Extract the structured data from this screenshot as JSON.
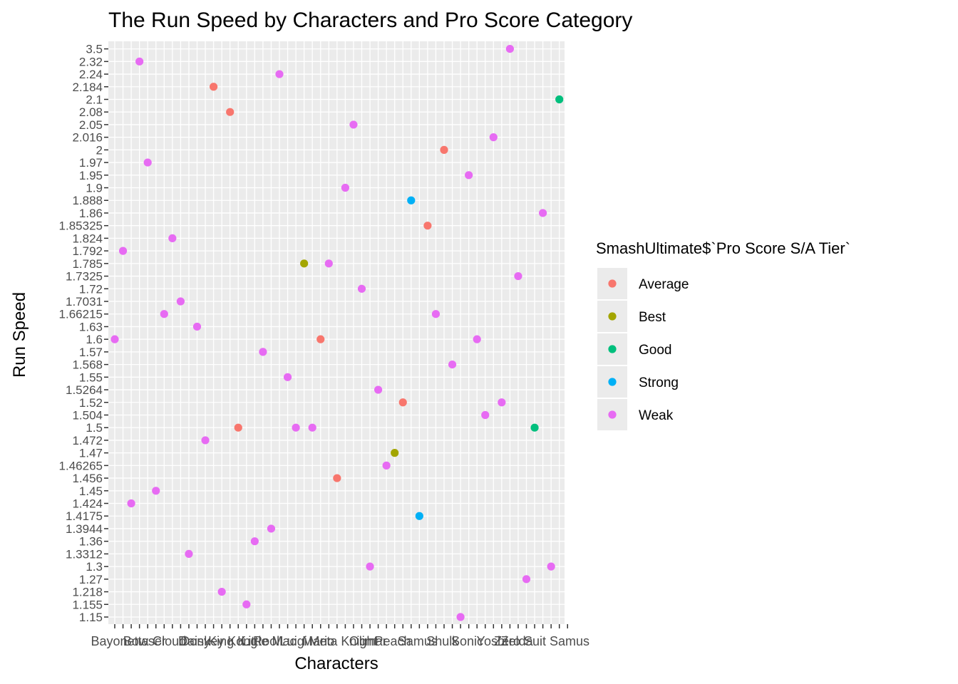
{
  "chart_data": {
    "type": "scatter",
    "title": "The Run Speed by Characters and Pro Score Category",
    "xlabel": "Characters",
    "ylabel": "Run Speed",
    "y_axis_kind": "discrete",
    "y_levels": [
      "1.15",
      "1.155",
      "1.218",
      "1.27",
      "1.3",
      "1.3312",
      "1.36",
      "1.3944",
      "1.4175",
      "1.424",
      "1.45",
      "1.456",
      "1.46265",
      "1.47",
      "1.472",
      "1.5",
      "1.504",
      "1.52",
      "1.5264",
      "1.55",
      "1.568",
      "1.57",
      "1.6",
      "1.63",
      "1.66215",
      "1.7031",
      "1.72",
      "1.7325",
      "1.785",
      "1.792",
      "1.824",
      "1.85325",
      "1.86",
      "1.888",
      "1.9",
      "1.95",
      "1.97",
      "2",
      "2.016",
      "2.05",
      "2.08",
      "2.1",
      "2.184",
      "2.24",
      "2.32",
      "3.5"
    ],
    "x_tick_count": 56,
    "x_tick_labels": [
      "Bayonetta",
      "Bowser",
      "Cloud",
      "Daisy",
      "Donkey Kong",
      "King K. Rool",
      "Little Mac",
      "Luigi",
      "Mario",
      "Meta Knight",
      "Olimar",
      "Peach",
      "Samus",
      "Shulk",
      "Sonic",
      "Yoshi",
      "Zelda",
      "Zero Suit Samus"
    ],
    "legend": {
      "title": "SmashUltimate$`Pro Score S/A Tier`",
      "position": "right",
      "entries": [
        {
          "name": "Average",
          "color": "#F8766D"
        },
        {
          "name": "Best",
          "color": "#A3A500"
        },
        {
          "name": "Good",
          "color": "#00BF7D"
        },
        {
          "name": "Strong",
          "color": "#00B0F6"
        },
        {
          "name": "Weak",
          "color": "#E76BF3"
        }
      ]
    },
    "grid": true,
    "points": [
      {
        "x": 1,
        "y": "1.6",
        "tier": "Weak"
      },
      {
        "x": 2,
        "y": "1.792",
        "tier": "Weak"
      },
      {
        "x": 3,
        "y": "1.424",
        "tier": "Weak"
      },
      {
        "x": 4,
        "y": "2.32",
        "tier": "Weak"
      },
      {
        "x": 5,
        "y": "1.97",
        "tier": "Weak"
      },
      {
        "x": 6,
        "y": "1.45",
        "tier": "Weak"
      },
      {
        "x": 7,
        "y": "1.66215",
        "tier": "Weak"
      },
      {
        "x": 8,
        "y": "1.824",
        "tier": "Weak"
      },
      {
        "x": 9,
        "y": "1.7031",
        "tier": "Weak"
      },
      {
        "x": 10,
        "y": "1.3312",
        "tier": "Weak"
      },
      {
        "x": 11,
        "y": "1.63",
        "tier": "Weak"
      },
      {
        "x": 12,
        "y": "1.472",
        "tier": "Weak"
      },
      {
        "x": 13,
        "y": "2.184",
        "tier": "Average"
      },
      {
        "x": 14,
        "y": "1.218",
        "tier": "Weak"
      },
      {
        "x": 15,
        "y": "2.08",
        "tier": "Average"
      },
      {
        "x": 16,
        "y": "1.5",
        "tier": "Average"
      },
      {
        "x": 17,
        "y": "1.155",
        "tier": "Weak"
      },
      {
        "x": 18,
        "y": "1.36",
        "tier": "Weak"
      },
      {
        "x": 19,
        "y": "1.57",
        "tier": "Weak"
      },
      {
        "x": 20,
        "y": "1.3944",
        "tier": "Weak"
      },
      {
        "x": 21,
        "y": "2.24",
        "tier": "Weak"
      },
      {
        "x": 22,
        "y": "1.55",
        "tier": "Weak"
      },
      {
        "x": 23,
        "y": "1.5",
        "tier": "Weak"
      },
      {
        "x": 24,
        "y": "1.785",
        "tier": "Best"
      },
      {
        "x": 25,
        "y": "1.5",
        "tier": "Weak"
      },
      {
        "x": 26,
        "y": "1.6",
        "tier": "Average"
      },
      {
        "x": 27,
        "y": "1.785",
        "tier": "Weak"
      },
      {
        "x": 28,
        "y": "1.456",
        "tier": "Average"
      },
      {
        "x": 29,
        "y": "1.9",
        "tier": "Weak"
      },
      {
        "x": 30,
        "y": "2.05",
        "tier": "Weak"
      },
      {
        "x": 31,
        "y": "1.72",
        "tier": "Weak"
      },
      {
        "x": 32,
        "y": "1.3",
        "tier": "Weak"
      },
      {
        "x": 33,
        "y": "1.5264",
        "tier": "Weak"
      },
      {
        "x": 34,
        "y": "1.46265",
        "tier": "Weak"
      },
      {
        "x": 35,
        "y": "1.47",
        "tier": "Best"
      },
      {
        "x": 36,
        "y": "1.52",
        "tier": "Average"
      },
      {
        "x": 37,
        "y": "1.888",
        "tier": "Strong"
      },
      {
        "x": 38,
        "y": "1.4175",
        "tier": "Strong"
      },
      {
        "x": 39,
        "y": "1.85325",
        "tier": "Average"
      },
      {
        "x": 40,
        "y": "1.66215",
        "tier": "Weak"
      },
      {
        "x": 41,
        "y": "2",
        "tier": "Average"
      },
      {
        "x": 42,
        "y": "1.568",
        "tier": "Weak"
      },
      {
        "x": 43,
        "y": "1.15",
        "tier": "Weak"
      },
      {
        "x": 44,
        "y": "1.95",
        "tier": "Weak"
      },
      {
        "x": 45,
        "y": "1.6",
        "tier": "Weak"
      },
      {
        "x": 46,
        "y": "1.504",
        "tier": "Weak"
      },
      {
        "x": 47,
        "y": "2.016",
        "tier": "Weak"
      },
      {
        "x": 48,
        "y": "1.52",
        "tier": "Weak"
      },
      {
        "x": 49,
        "y": "3.5",
        "tier": "Weak"
      },
      {
        "x": 50,
        "y": "1.7325",
        "tier": "Weak"
      },
      {
        "x": 51,
        "y": "1.27",
        "tier": "Weak"
      },
      {
        "x": 52,
        "y": "1.5",
        "tier": "Good"
      },
      {
        "x": 53,
        "y": "1.86",
        "tier": "Weak"
      },
      {
        "x": 54,
        "y": "1.3",
        "tier": "Weak"
      },
      {
        "x": 55,
        "y": "2.1",
        "tier": "Good"
      }
    ]
  }
}
